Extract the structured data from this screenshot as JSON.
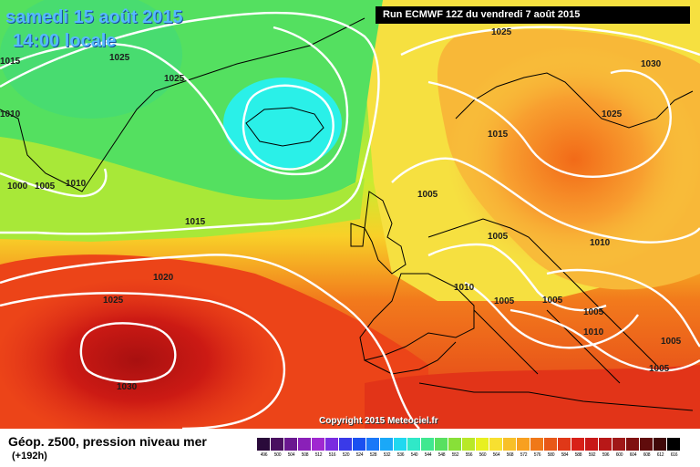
{
  "header": {
    "date_line": "samedi 15 août 2015",
    "time_line": "14:00 locale",
    "run_info": "Run ECMWF 12Z du vendredi 7 août 2015"
  },
  "footer": {
    "field_label": "Géop. z500, pression niveau mer",
    "lead_time": "(+192h)",
    "copyright": "Copyright 2015 Meteociel.fr"
  },
  "isobar_labels": [
    "1025",
    "1015",
    "1025",
    "1010",
    "1000",
    "1005",
    "1010",
    "1015",
    "1030",
    "1025",
    "1015",
    "1005",
    "1005",
    "1010",
    "1010",
    "1005",
    "1005",
    "1005",
    "1010",
    "1005",
    "1005",
    "1020",
    "1025",
    "1030",
    "1025"
  ],
  "color_scale": {
    "labels": [
      "496",
      "500",
      "504",
      "508",
      "512",
      "516",
      "520",
      "524",
      "528",
      "532",
      "536",
      "540",
      "544",
      "548",
      "552",
      "556",
      "560",
      "564",
      "568",
      "572",
      "576",
      "580",
      "584",
      "588",
      "592",
      "596",
      "600",
      "604",
      "608",
      "612",
      "616"
    ],
    "colors": [
      "#2a0a3a",
      "#4a1060",
      "#6a1890",
      "#8a20b8",
      "#a028d0",
      "#7a2ce0",
      "#3a3ae8",
      "#1a50f0",
      "#1a78f8",
      "#1aa8f8",
      "#20d8f0",
      "#30e8c8",
      "#40e890",
      "#58e060",
      "#88e038",
      "#b8e828",
      "#e8f020",
      "#f8e030",
      "#f8c028",
      "#f8a020",
      "#f07818",
      "#e85818",
      "#e03818",
      "#d82018",
      "#c81818",
      "#b81818",
      "#a01818",
      "#801010",
      "#600c0c",
      "#400808",
      "#000000"
    ]
  },
  "map_colors": {
    "green_low": "#5ce05c",
    "cyan_low": "#2aeef0",
    "yellow": "#f0f040",
    "orange": "#f89a28",
    "red": "#e02018",
    "coast": "#000000",
    "isobar": "#ffffff"
  }
}
